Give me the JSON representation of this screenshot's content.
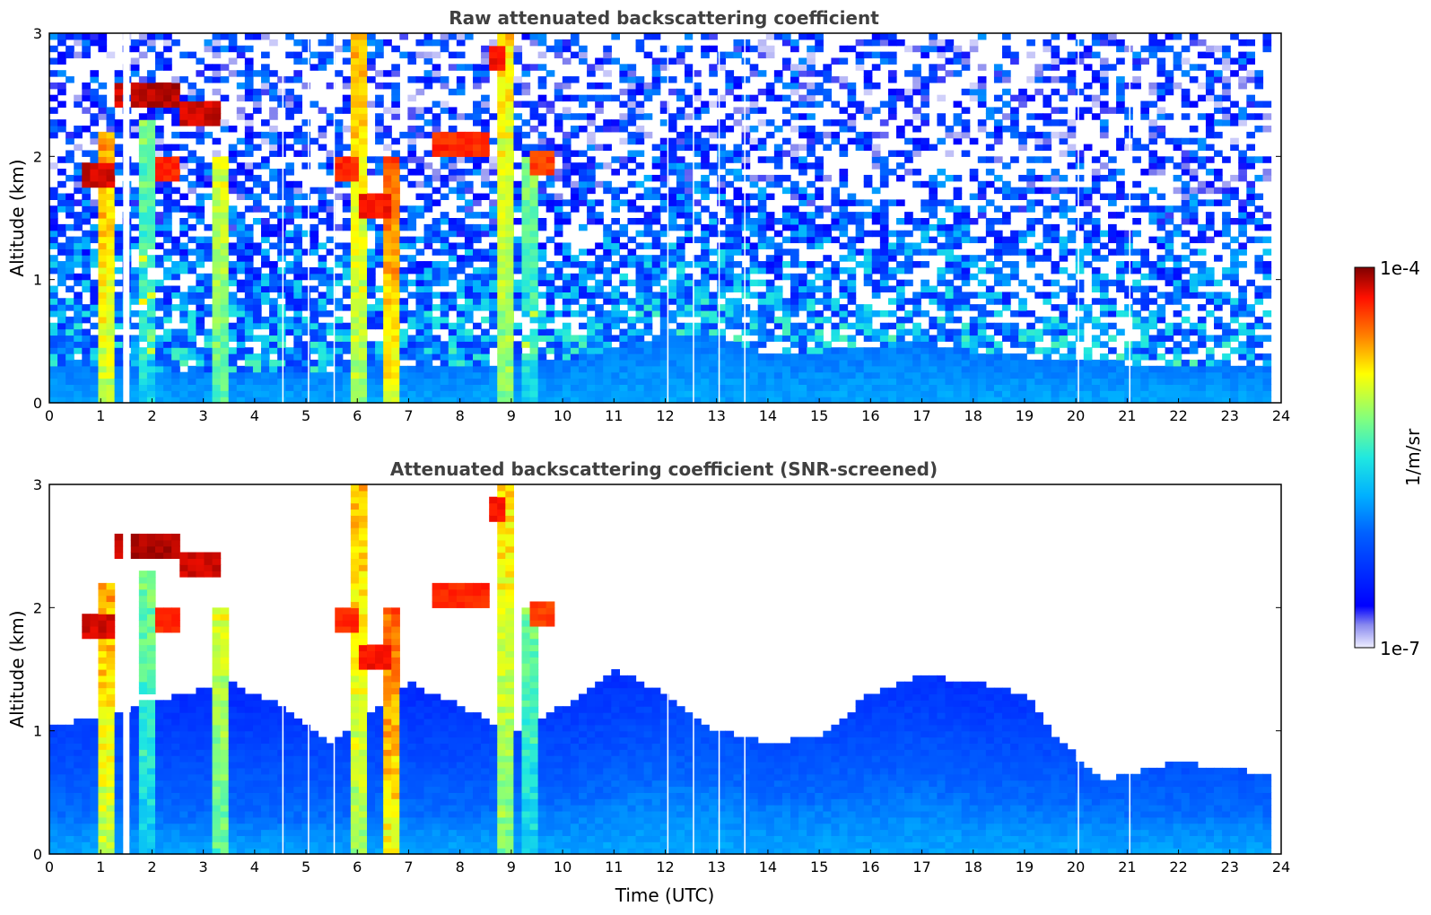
{
  "chart_data": [
    {
      "type": "heatmap",
      "title": "Raw attenuated backscattering coefficient",
      "xlabel": "",
      "ylabel": "Altitude (km)",
      "xlim": [
        0,
        24
      ],
      "ylim": [
        0,
        3
      ],
      "x_ticks": [
        0,
        1,
        2,
        3,
        4,
        5,
        6,
        7,
        8,
        9,
        10,
        11,
        12,
        13,
        14,
        15,
        16,
        17,
        18,
        19,
        20,
        21,
        22,
        23,
        24
      ],
      "y_ticks": [
        0,
        1,
        2,
        3
      ],
      "data_end_hour": 23.8,
      "boundary_layer_top_km": [
        [
          0,
          0.3
        ],
        [
          4,
          0.25
        ],
        [
          8,
          0.3
        ],
        [
          10,
          0.35
        ],
        [
          11,
          0.45
        ],
        [
          12,
          0.55
        ],
        [
          13,
          0.55
        ],
        [
          14,
          0.4
        ],
        [
          16,
          0.45
        ],
        [
          17,
          0.5
        ],
        [
          18,
          0.4
        ],
        [
          20,
          0.35
        ],
        [
          22,
          0.3
        ],
        [
          23.8,
          0.3
        ]
      ],
      "cloud_layers": [
        {
          "t_start": 0.6,
          "t_end": 1.2,
          "alt_km": 1.85,
          "level": 0.95
        },
        {
          "t_start": 1.2,
          "t_end": 1.5,
          "alt_km": 2.5,
          "level": 0.95
        },
        {
          "t_start": 1.6,
          "t_end": 2.6,
          "alt_km": 2.5,
          "level": 0.97
        },
        {
          "t_start": 2.6,
          "t_end": 3.3,
          "alt_km": 2.35,
          "level": 0.95
        },
        {
          "t_start": 2.0,
          "t_end": 2.6,
          "alt_km": 1.9,
          "level": 0.9
        },
        {
          "t_start": 5.6,
          "t_end": 6.0,
          "alt_km": 1.9,
          "level": 0.9
        },
        {
          "t_start": 6.0,
          "t_end": 6.6,
          "alt_km": 1.6,
          "level": 0.92
        },
        {
          "t_start": 7.4,
          "t_end": 8.6,
          "alt_km": 2.1,
          "level": 0.9
        },
        {
          "t_start": 9.4,
          "t_end": 9.9,
          "alt_km": 1.95,
          "level": 0.88
        },
        {
          "t_start": 8.5,
          "t_end": 8.9,
          "alt_km": 2.8,
          "level": 0.92
        }
      ],
      "precipitation_columns": [
        {
          "t": 1.1,
          "alt_top_km": 2.2,
          "level": 0.8
        },
        {
          "t": 1.9,
          "alt_top_km": 2.3,
          "level": 0.6
        },
        {
          "t": 3.3,
          "alt_top_km": 2.0,
          "level": 0.7
        },
        {
          "t": 6.0,
          "alt_top_km": 3.0,
          "level": 0.78
        },
        {
          "t": 6.6,
          "alt_top_km": 2.0,
          "level": 0.85
        },
        {
          "t": 8.9,
          "alt_top_km": 3.0,
          "level": 0.75
        },
        {
          "t": 9.3,
          "alt_top_km": 2.0,
          "level": 0.6
        }
      ],
      "missing_profiles_hour": [
        1.5,
        4.55,
        5.05,
        5.55,
        12.05,
        12.55,
        13.05,
        13.55,
        20.05,
        21.05
      ]
    },
    {
      "type": "heatmap",
      "title": "Attenuated backscattering coefficient (SNR-screened)",
      "xlabel": "Time (UTC)",
      "ylabel": "Altitude (km)",
      "xlim": [
        0,
        24
      ],
      "ylim": [
        0,
        3
      ],
      "x_ticks": [
        0,
        1,
        2,
        3,
        4,
        5,
        6,
        7,
        8,
        9,
        10,
        11,
        12,
        13,
        14,
        15,
        16,
        17,
        18,
        19,
        20,
        21,
        22,
        23,
        24
      ],
      "y_ticks": [
        0,
        1,
        2,
        3
      ],
      "valid_signal_top_km": [
        [
          0,
          1.05
        ],
        [
          1,
          1.1
        ],
        [
          3.5,
          1.4
        ],
        [
          4.5,
          1.2
        ],
        [
          5.5,
          0.9
        ],
        [
          7,
          1.4
        ],
        [
          8,
          1.2
        ],
        [
          9,
          1.0
        ],
        [
          10,
          1.2
        ],
        [
          11,
          1.5
        ],
        [
          12,
          1.3
        ],
        [
          13,
          1.0
        ],
        [
          14,
          0.9
        ],
        [
          15,
          0.95
        ],
        [
          16,
          1.3
        ],
        [
          17,
          1.45
        ],
        [
          18,
          1.4
        ],
        [
          19,
          1.3
        ],
        [
          19.6,
          0.95
        ],
        [
          20.5,
          0.6
        ],
        [
          22,
          0.75
        ],
        [
          23.8,
          0.65
        ]
      ]
    },
    {
      "type": "colorbar",
      "label": "1/m/sr",
      "min_label": "1e-7",
      "max_label": "1e-4",
      "scale": "log",
      "colormap": "jet"
    }
  ]
}
